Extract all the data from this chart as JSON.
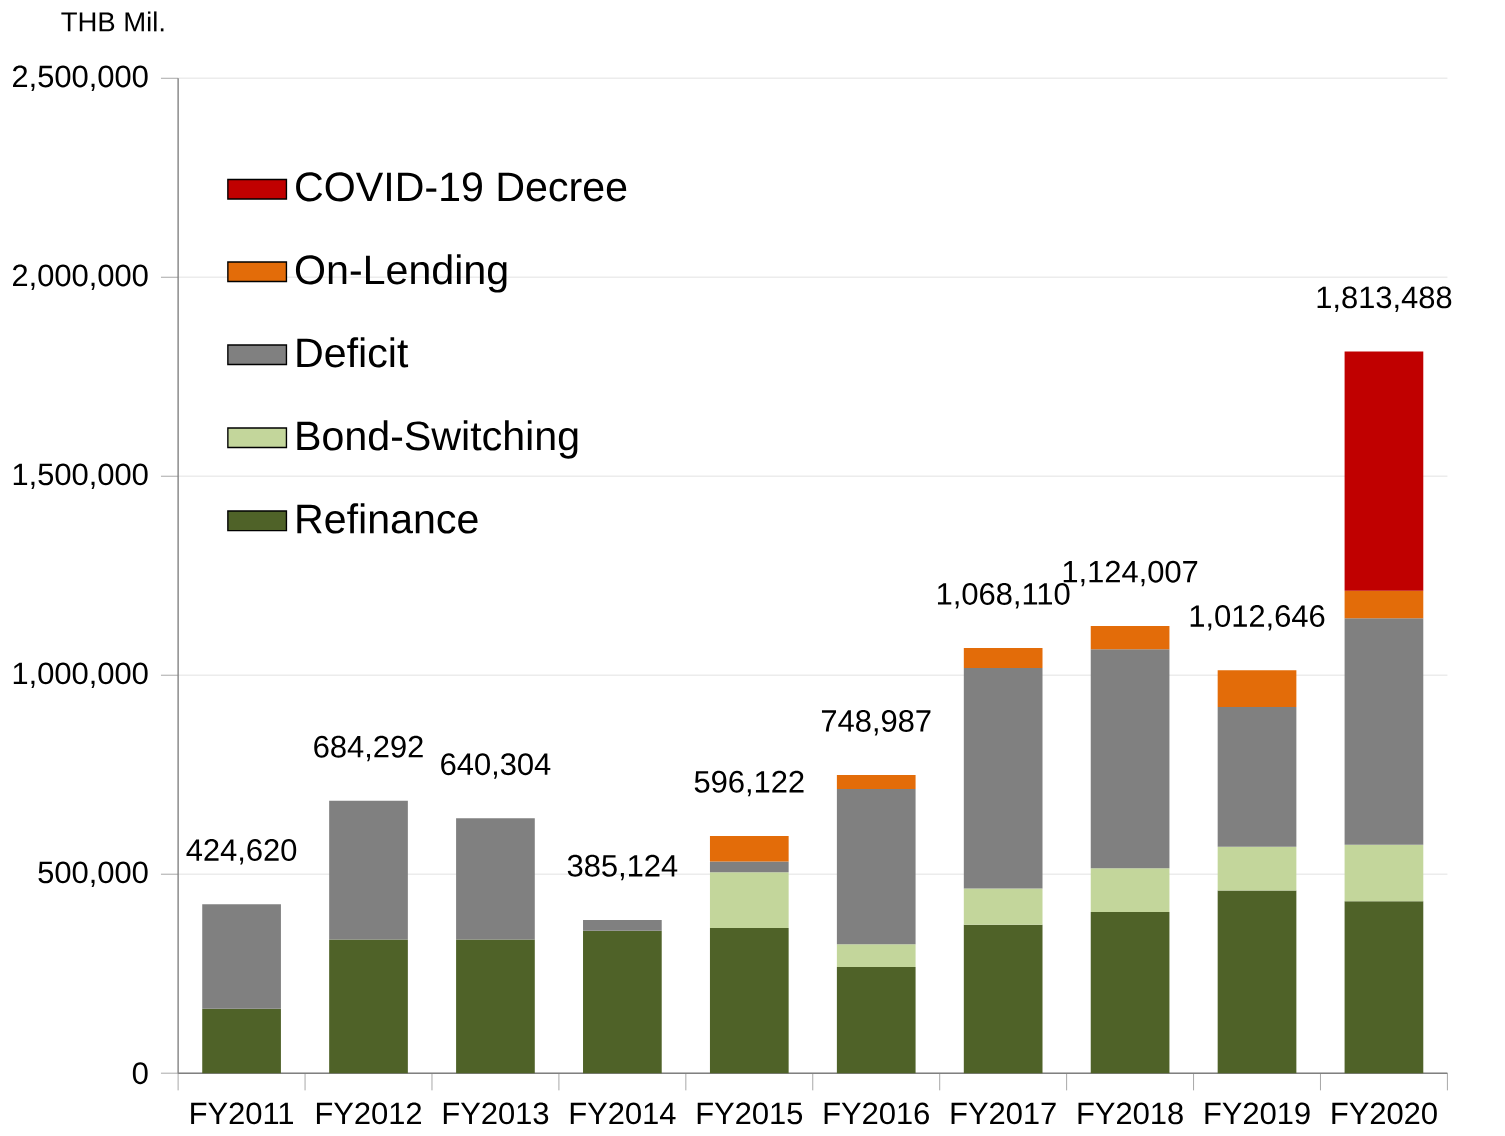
{
  "chart_data": {
    "type": "bar",
    "stacked": true,
    "ylabel": "THB Mil.",
    "categories": [
      "FY2011",
      "FY2012",
      "FY2013",
      "FY2014",
      "FY2015",
      "FY2016",
      "FY2017",
      "FY2018",
      "FY2019",
      "FY2020"
    ],
    "series": [
      {
        "name": "Refinance",
        "color": "#4f6228",
        "values": [
          162000,
          336000,
          336000,
          358000,
          365000,
          267000,
          373000,
          405000,
          459000,
          432000
        ]
      },
      {
        "name": "Bond-Switching",
        "color": "#c3d69b",
        "values": [
          null,
          null,
          null,
          null,
          140000,
          57000,
          91000,
          110000,
          110000,
          142000
        ]
      },
      {
        "name": "Deficit",
        "color": "#808080",
        "values": [
          262620,
          348292,
          304304,
          27124,
          27000,
          390000,
          554000,
          550000,
          351000,
          569000
        ]
      },
      {
        "name": "On-Lending",
        "color": "#e36c09",
        "values": [
          null,
          null,
          null,
          null,
          64122,
          34987,
          50110,
          59007,
          92646,
          69000
        ]
      },
      {
        "name": "COVID-19 Decree",
        "color": "#c00000",
        "values": [
          null,
          null,
          null,
          null,
          null,
          null,
          null,
          null,
          null,
          601488
        ]
      }
    ],
    "totals": [
      "424,620",
      "684,292",
      "640,304",
      "385,124",
      "596,122",
      "748,987",
      "1,068,110",
      "1,124,007",
      "1,012,646",
      "1,813,488"
    ],
    "ylim": [
      0,
      2500000
    ],
    "yticks": [
      {
        "value": 0,
        "label": "0"
      },
      {
        "value": 500000,
        "label": "500,000"
      },
      {
        "value": 1000000,
        "label": "1,000,000"
      },
      {
        "value": 1500000,
        "label": "1,500,000"
      },
      {
        "value": 2000000,
        "label": "2,000,000"
      },
      {
        "value": 2500000,
        "label": "2,500,000"
      }
    ],
    "grid": "y",
    "legend": "top left"
  }
}
